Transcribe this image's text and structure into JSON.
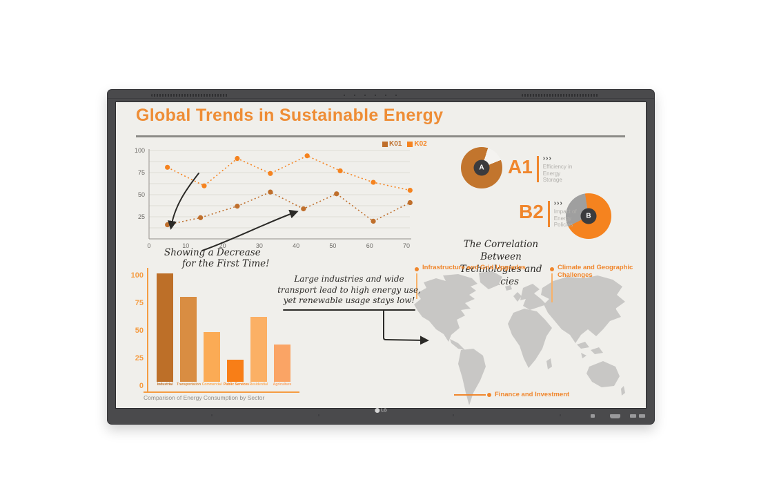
{
  "device": {
    "brand_logo": "LG",
    "bezel_color": "#4a4a4c",
    "screen_bg": "#f0efeb"
  },
  "slide": {
    "title": "Global Trends in Sustainable Energy",
    "title_color": "#ee8d36",
    "accent_color": "#f0862c",
    "ink_color": "#2b2a27"
  },
  "chart_data": [
    {
      "id": "trend-lines",
      "type": "line",
      "style": "dotted-with-markers",
      "grid": true,
      "legend_position": "top-right",
      "x_ticks": [
        0,
        10,
        20,
        30,
        40,
        50,
        60,
        70
      ],
      "y_ticks": [
        25,
        50,
        75,
        100
      ],
      "xlim": [
        0,
        75
      ],
      "ylim": [
        0,
        100
      ],
      "series": [
        {
          "name": "K01",
          "color": "#bf6f2c",
          "points": [
            [
              5,
              16
            ],
            [
              14,
              24
            ],
            [
              24,
              37
            ],
            [
              33,
              53
            ],
            [
              42,
              34
            ],
            [
              51,
              51
            ],
            [
              61,
              20
            ],
            [
              71,
              41
            ]
          ]
        },
        {
          "name": "K02",
          "color": "#f5831f",
          "points": [
            [
              5,
              81
            ],
            [
              15,
              60
            ],
            [
              24,
              91
            ],
            [
              33,
              74
            ],
            [
              43,
              94
            ],
            [
              52,
              77
            ],
            [
              61,
              64
            ],
            [
              71,
              55
            ]
          ]
        }
      ]
    },
    {
      "id": "sector-bars",
      "type": "bar",
      "categories": [
        "Industrial",
        "Transportation",
        "Commercial",
        "Public Services",
        "Residential",
        "Agriculture"
      ],
      "values": [
        102,
        80,
        47,
        21,
        61,
        35
      ],
      "colors": [
        "#bd6f28",
        "#d98d42",
        "#fbab55",
        "#f87e17",
        "#fbb065",
        "#faa465"
      ],
      "y_ticks": [
        0,
        25,
        50,
        75,
        100
      ],
      "ylim": [
        0,
        105
      ],
      "axis_color": "#f59c42",
      "caption": "Comparison of Energy Consumption by Sector"
    },
    {
      "id": "pie-a",
      "type": "pie",
      "tag": "A1",
      "center_letter": "A",
      "description": "Efficiency in Energy Storage",
      "desc_lines": [
        "Efficiency in",
        "Energy",
        "Storage"
      ],
      "slices": [
        {
          "label": "main",
          "value": 86,
          "color": "#c2752d"
        },
        {
          "label": "remainder",
          "value": 14,
          "color": "#f4f3f0"
        }
      ],
      "wedge_start_deg": 18,
      "wedge_end_deg": 68
    },
    {
      "id": "pie-b",
      "type": "pie",
      "tag": "B2",
      "center_letter": "B",
      "description": "Impact of Energy Policies",
      "desc_lines": [
        "Impact of",
        "Energy",
        "Policies"
      ],
      "slices": [
        {
          "label": "main",
          "value": 70,
          "color": "#f5831f"
        },
        {
          "label": "remainder",
          "value": 30,
          "color": "#9f9f9f"
        }
      ],
      "wedge_start_deg": 243,
      "wedge_end_deg": 351
    }
  ],
  "annotations": {
    "chevrons": "›››",
    "decrease_note_line1": "Showing a Decrease",
    "decrease_note_line2": "for the First Time!",
    "correlation_line1": "The Correlation Between",
    "correlation_line2": "Technologies and Policies",
    "industry_note_line1": "Large industries and wide",
    "industry_note_line2": "transport lead to high energy use,",
    "industry_note_line3": "yet renewable usage stays low!"
  },
  "map": {
    "landmass_color": "#c8c7c5",
    "callouts": [
      {
        "label": "Infrastructure and Grid Upgrades"
      },
      {
        "label": "Climate and Geographic Challenges"
      },
      {
        "label": "Finance and Investment"
      }
    ]
  }
}
